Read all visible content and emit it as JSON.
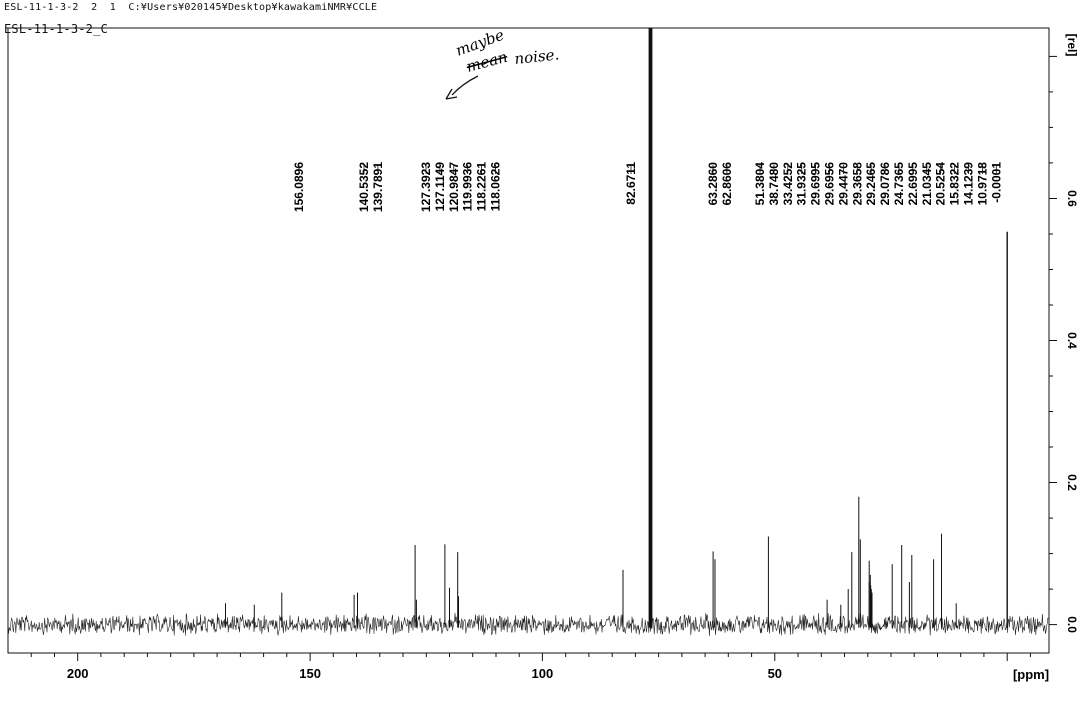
{
  "header": {
    "line1": "ESL-11-1-3-2  2  1  C:¥Users¥020145¥Desktop¥kawakamiNMR¥CCLE",
    "line2": "ESL-11-1-3-2_C"
  },
  "annotation": {
    "handwritten_1": "maybe",
    "handwritten_2": "mean",
    "handwritten_3": "noise."
  },
  "chart_data": {
    "type": "line",
    "x_unit_label": "[ppm]",
    "y_unit_label": "[rel]",
    "xlim": [
      215,
      -9
    ],
    "ylim": [
      -0.04,
      0.84
    ],
    "x_ticks": [
      200,
      150,
      100,
      50
    ],
    "y_ticks": [
      {
        "value": 0.0,
        "label": "0.0"
      },
      {
        "value": 0.2,
        "label": "0.2"
      },
      {
        "value": 0.4,
        "label": "0.4"
      },
      {
        "value": 0.6,
        "label": "0.6"
      }
    ],
    "noise_level": 0.012,
    "baseline_end_ppm": -9,
    "peak_labels": [
      "156.0896",
      "140.5352",
      "139.7891",
      "127.3923",
      "127.1149",
      "120.9847",
      "119.9936",
      "118.2261",
      "118.0626",
      "82.6711",
      "63.2860",
      "62.8606",
      "51.3804",
      "38.7480",
      "33.4252",
      "31.9325",
      "29.6995",
      "29.6956",
      "29.4470",
      "29.3658",
      "29.2465",
      "29.0786",
      "24.7365",
      "22.6995",
      "21.0345",
      "20.5254",
      "15.8322",
      "14.1239",
      "10.9718",
      "-0.0001"
    ],
    "peaks": [
      {
        "ppm": 168.2,
        "height": 0.03
      },
      {
        "ppm": 162.0,
        "height": 0.028
      },
      {
        "ppm": 156.0896,
        "height": 0.045
      },
      {
        "ppm": 140.5352,
        "height": 0.042
      },
      {
        "ppm": 139.7891,
        "height": 0.045
      },
      {
        "ppm": 127.3923,
        "height": 0.112
      },
      {
        "ppm": 127.1149,
        "height": 0.035
      },
      {
        "ppm": 120.9847,
        "height": 0.113
      },
      {
        "ppm": 119.9936,
        "height": 0.052
      },
      {
        "ppm": 118.2261,
        "height": 0.102
      },
      {
        "ppm": 118.0626,
        "height": 0.04
      },
      {
        "ppm": 82.6711,
        "height": 0.077
      },
      {
        "ppm": 77.0,
        "height": 0.84
      },
      {
        "ppm": 76.7,
        "height": 0.84
      },
      {
        "ppm": 76.5,
        "height": 0.84
      },
      {
        "ppm": 63.286,
        "height": 0.103
      },
      {
        "ppm": 62.8606,
        "height": 0.092
      },
      {
        "ppm": 51.3804,
        "height": 0.124
      },
      {
        "ppm": 38.748,
        "height": 0.035
      },
      {
        "ppm": 35.8,
        "height": 0.028
      },
      {
        "ppm": 34.2,
        "height": 0.05
      },
      {
        "ppm": 33.4252,
        "height": 0.102
      },
      {
        "ppm": 31.9325,
        "height": 0.18
      },
      {
        "ppm": 31.6,
        "height": 0.12
      },
      {
        "ppm": 29.6995,
        "height": 0.09
      },
      {
        "ppm": 29.6956,
        "height": 0.06
      },
      {
        "ppm": 29.447,
        "height": 0.07
      },
      {
        "ppm": 29.3658,
        "height": 0.055
      },
      {
        "ppm": 29.2465,
        "height": 0.05
      },
      {
        "ppm": 29.0786,
        "height": 0.045
      },
      {
        "ppm": 24.7365,
        "height": 0.085
      },
      {
        "ppm": 22.6995,
        "height": 0.112
      },
      {
        "ppm": 21.0345,
        "height": 0.06
      },
      {
        "ppm": 20.5254,
        "height": 0.098
      },
      {
        "ppm": 15.8322,
        "height": 0.092
      },
      {
        "ppm": 14.1239,
        "height": 0.128
      },
      {
        "ppm": 10.9718,
        "height": 0.03
      },
      {
        "ppm": -0.0001,
        "height": 0.553
      }
    ]
  }
}
